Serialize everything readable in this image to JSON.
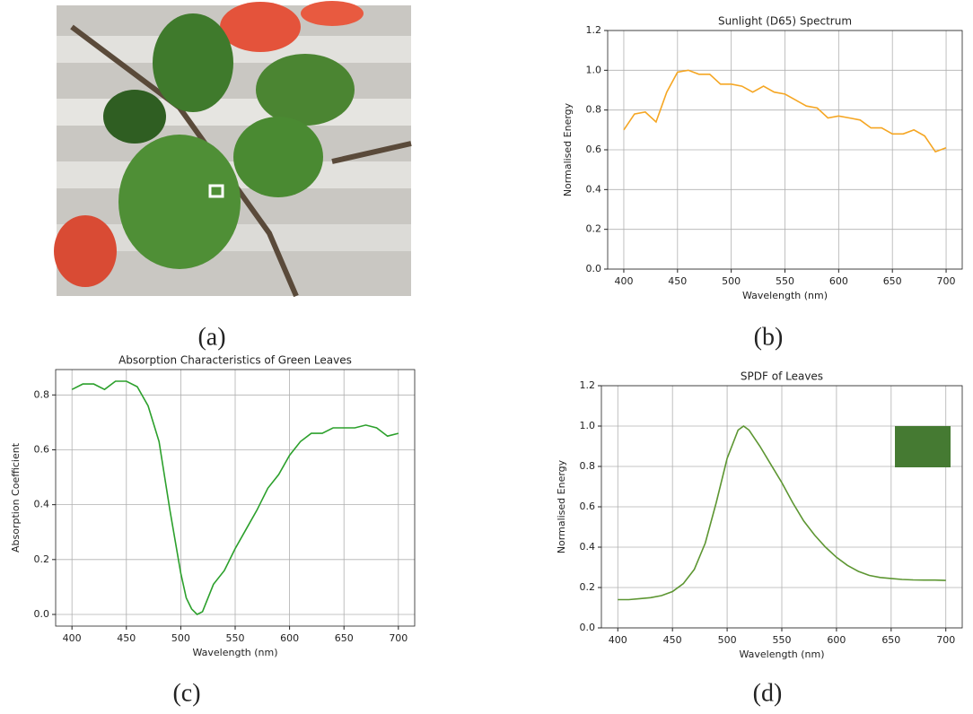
{
  "captions": [
    "(a)",
    "(b)",
    "(c)",
    "(d)"
  ],
  "chart_data": [
    {
      "type": "line",
      "title": "Sunlight (D65) Spectrum",
      "x_label": "Wavelength (nm)",
      "y_label": "Normalised Energy",
      "color": "#f5a623",
      "grid": true,
      "x": [
        400,
        410,
        420,
        430,
        440,
        450,
        460,
        470,
        480,
        490,
        500,
        510,
        520,
        530,
        540,
        550,
        560,
        570,
        580,
        590,
        600,
        610,
        620,
        630,
        640,
        650,
        660,
        670,
        680,
        690,
        700
      ],
      "values": [
        0.7,
        0.78,
        0.79,
        0.74,
        0.89,
        0.99,
        1.0,
        0.98,
        0.98,
        0.93,
        0.93,
        0.92,
        0.89,
        0.92,
        0.89,
        0.88,
        0.85,
        0.82,
        0.81,
        0.76,
        0.77,
        0.76,
        0.75,
        0.71,
        0.71,
        0.68,
        0.68,
        0.7,
        0.67,
        0.59,
        0.61
      ],
      "xlim": [
        385,
        715
      ],
      "xticks": [
        400,
        450,
        500,
        550,
        600,
        650,
        700
      ],
      "ylim": [
        0,
        1.2
      ],
      "yticks": [
        {
          "value": 0,
          "label": "0.0"
        },
        0.2,
        0.4,
        0.6,
        0.8,
        {
          "value": 1,
          "label": "1.0"
        },
        1.2
      ]
    },
    {
      "type": "line",
      "title": "Absorption Characteristics of Green Leaves",
      "x_label": "Wavelength (nm)",
      "y_label": "Absorption Coefficient",
      "color": "#2ca02c",
      "grid": true,
      "x": [
        400,
        410,
        420,
        430,
        440,
        450,
        460,
        470,
        480,
        490,
        500,
        505,
        510,
        515,
        520,
        530,
        540,
        550,
        560,
        570,
        580,
        590,
        600,
        610,
        620,
        630,
        640,
        650,
        660,
        670,
        680,
        690,
        700
      ],
      "values": [
        0.82,
        0.84,
        0.84,
        0.82,
        0.85,
        0.85,
        0.83,
        0.76,
        0.63,
        0.38,
        0.15,
        0.06,
        0.02,
        0.0,
        0.01,
        0.11,
        0.16,
        0.24,
        0.31,
        0.38,
        0.46,
        0.51,
        0.58,
        0.63,
        0.66,
        0.66,
        0.68,
        0.68,
        0.68,
        0.69,
        0.68,
        0.65,
        0.66
      ],
      "xlim": [
        385,
        715
      ],
      "xticks": [
        400,
        450,
        500,
        550,
        600,
        650,
        700
      ],
      "ylim": [
        -0.0425,
        0.8925
      ],
      "yticks": [
        {
          "value": 0,
          "label": "0.0"
        },
        0.2,
        0.4,
        0.6,
        0.8
      ]
    },
    {
      "type": "line",
      "title": "SPDF of Leaves",
      "x_label": "Wavelength (nm)",
      "y_label": "Normalised Energy",
      "color": "#5d9632",
      "swatch_color": "#457a32",
      "grid": true,
      "x": [
        400,
        410,
        420,
        430,
        440,
        450,
        460,
        470,
        480,
        490,
        500,
        510,
        515,
        520,
        530,
        540,
        550,
        560,
        570,
        580,
        590,
        600,
        610,
        620,
        630,
        640,
        650,
        660,
        670,
        680,
        690,
        700
      ],
      "values": [
        0.14,
        0.14,
        0.145,
        0.15,
        0.16,
        0.18,
        0.22,
        0.29,
        0.42,
        0.62,
        0.84,
        0.98,
        1.0,
        0.98,
        0.9,
        0.81,
        0.72,
        0.62,
        0.53,
        0.46,
        0.4,
        0.35,
        0.31,
        0.28,
        0.26,
        0.25,
        0.245,
        0.24,
        0.238,
        0.237,
        0.237,
        0.235
      ],
      "xlim": [
        385,
        715
      ],
      "xticks": [
        400,
        450,
        500,
        550,
        600,
        650,
        700
      ],
      "ylim": [
        0,
        1.2
      ],
      "yticks": [
        {
          "value": 0,
          "label": "0.0"
        },
        0.2,
        0.4,
        0.6,
        0.8,
        {
          "value": 1,
          "label": "1.0"
        },
        1.2
      ]
    }
  ]
}
